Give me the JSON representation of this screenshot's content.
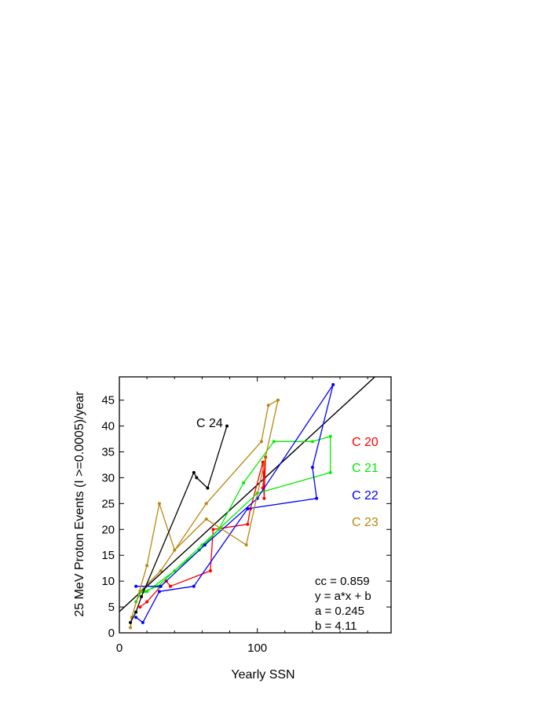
{
  "chart_data": {
    "type": "line",
    "xlabel": "Yearly SSN",
    "ylabel": "25 MeV Proton Events (I >=0.0005)/year",
    "xlim": [
      0,
      197
    ],
    "ylim": [
      0,
      49.5
    ],
    "xticks": [
      0,
      100
    ],
    "yticks": [
      0,
      5,
      10,
      15,
      20,
      25,
      30,
      35,
      40,
      45
    ],
    "grid": false,
    "legend_position": "right",
    "series": [
      {
        "name": "C 20",
        "color": "#ff0000",
        "points": [
          [
            15,
            5
          ],
          [
            20,
            6
          ],
          [
            30,
            9
          ],
          [
            34,
            10
          ],
          [
            37,
            9
          ],
          [
            66,
            12
          ],
          [
            68,
            20
          ],
          [
            93,
            21
          ],
          [
            95,
            24
          ],
          [
            104,
            33
          ],
          [
            105,
            26
          ],
          [
            106,
            34
          ],
          [
            104,
            28
          ]
        ]
      },
      {
        "name": "C 21",
        "color": "#00ee00",
        "points": [
          [
            12,
            6
          ],
          [
            16,
            8
          ],
          [
            20,
            8
          ],
          [
            40,
            12
          ],
          [
            58,
            16
          ],
          [
            72,
            20
          ],
          [
            90,
            29
          ],
          [
            112,
            37
          ],
          [
            140,
            37
          ],
          [
            153,
            38
          ],
          [
            153,
            31
          ],
          [
            100,
            27
          ],
          [
            60,
            17
          ],
          [
            28,
            9
          ],
          [
            18,
            8
          ]
        ]
      },
      {
        "name": "C 22",
        "color": "#0000ff",
        "points": [
          [
            12,
            3
          ],
          [
            17,
            2
          ],
          [
            29,
            8
          ],
          [
            54,
            9
          ],
          [
            93,
            24
          ],
          [
            143,
            26
          ],
          [
            140,
            32
          ],
          [
            155,
            48
          ],
          [
            100,
            26
          ],
          [
            62,
            17
          ],
          [
            30,
            9
          ],
          [
            12,
            9
          ]
        ]
      },
      {
        "name": "C 23",
        "color": "#b8860b",
        "points": [
          [
            8,
            1
          ],
          [
            9,
            3
          ],
          [
            20,
            13
          ],
          [
            29,
            25
          ],
          [
            40,
            16
          ],
          [
            63,
            22
          ],
          [
            92,
            17
          ],
          [
            115,
            45
          ],
          [
            108,
            44
          ],
          [
            103,
            37
          ],
          [
            63,
            25
          ],
          [
            30,
            12
          ],
          [
            15,
            8
          ]
        ]
      },
      {
        "name": "C 24",
        "color": "#000000",
        "points": [
          [
            8,
            2
          ],
          [
            12,
            4
          ],
          [
            16,
            7
          ],
          [
            54,
            31
          ],
          [
            56,
            30
          ],
          [
            64,
            28
          ],
          [
            78,
            40
          ]
        ]
      }
    ],
    "fit_line": {
      "a": 0.245,
      "b": 4.11,
      "color": "#000000"
    },
    "annotations": {
      "series_label": "C 24",
      "stats": [
        "cc = 0.859",
        "y = a*x + b",
        "a = 0.245",
        "b = 4.11"
      ]
    },
    "legend": [
      {
        "label": "C 20",
        "color": "#ff0000"
      },
      {
        "label": "C 21",
        "color": "#00ee00"
      },
      {
        "label": "C 22",
        "color": "#0000ff"
      },
      {
        "label": "C 23",
        "color": "#b8860b"
      }
    ]
  }
}
